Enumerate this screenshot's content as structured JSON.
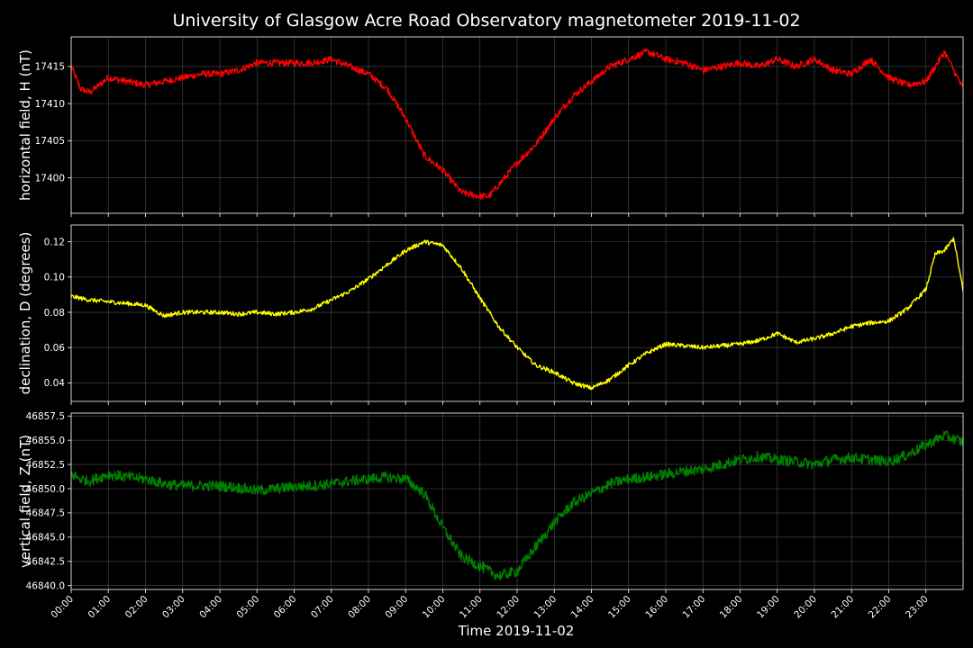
{
  "chart_data": {
    "type": "line",
    "title": "University of Glasgow Acre Road Observatory magnetometer 2019-11-02",
    "xlabel": "Time 2019-11-02",
    "x_ticks": [
      "00:00",
      "01:00",
      "02:00",
      "03:00",
      "04:00",
      "05:00",
      "06:00",
      "07:00",
      "08:00",
      "09:00",
      "10:00",
      "11:00",
      "12:00",
      "13:00",
      "14:00",
      "15:00",
      "16:00",
      "17:00",
      "18:00",
      "19:00",
      "20:00",
      "21:00",
      "22:00",
      "23:00"
    ],
    "x_range_hours": [
      0,
      24
    ],
    "grid": true,
    "panels": [
      {
        "ylabel": "horizontal field, H (nT)",
        "color": "#ff0000",
        "ylim": [
          17395.2,
          17419.0
        ],
        "y_ticks": [
          17400,
          17405,
          17410,
          17415
        ],
        "tick_labels": [
          "17400",
          "17405",
          "17410",
          "17415"
        ],
        "noise": 0.45,
        "x": [
          0,
          0.25,
          0.5,
          1,
          1.5,
          2,
          2.5,
          3,
          3.5,
          4,
          4.5,
          5,
          5.5,
          6,
          6.5,
          7,
          7.5,
          8,
          8.5,
          9,
          9.5,
          10,
          10.5,
          11,
          11.25,
          11.5,
          12,
          12.5,
          13,
          13.5,
          14,
          14.5,
          15,
          15.5,
          16,
          16.5,
          17,
          17.5,
          18,
          18.5,
          19,
          19.5,
          20,
          20.5,
          21,
          21.5,
          22,
          22.5,
          23,
          23.5,
          24
        ],
        "y": [
          17415,
          17412,
          17411.5,
          17413.5,
          17413,
          17412.5,
          17413,
          17413.5,
          17414,
          17414,
          17414.5,
          17415.5,
          17415.5,
          17415.5,
          17415.5,
          17416,
          17415,
          17414,
          17412,
          17408,
          17403,
          17401,
          17398,
          17397.5,
          17397.5,
          17399,
          17402,
          17404.5,
          17408,
          17411,
          17413,
          17415,
          17416,
          17417,
          17416,
          17415.5,
          17414.5,
          17415,
          17415.5,
          17415,
          17416,
          17415,
          17416,
          17414.5,
          17414,
          17416,
          17413.5,
          17412.5,
          17413,
          17417,
          17412
        ]
      },
      {
        "ylabel": "declination, D (degrees)",
        "color": "#ffff00",
        "ylim": [
          0.0295,
          0.1295
        ],
        "y_ticks": [
          0.04,
          0.06,
          0.08,
          0.1,
          0.12
        ],
        "tick_labels": [
          "0.04",
          "0.06",
          "0.08",
          "0.10",
          "0.12"
        ],
        "noise": 0.0012,
        "x": [
          0,
          0.5,
          1,
          1.5,
          2,
          2.5,
          3,
          3.5,
          4,
          4.5,
          5,
          5.5,
          6,
          6.5,
          7,
          7.5,
          8,
          8.5,
          9,
          9.5,
          10,
          10.5,
          11,
          11.5,
          12,
          12.5,
          13,
          13.5,
          14,
          14.5,
          15,
          15.5,
          16,
          16.5,
          17,
          17.5,
          18,
          18.5,
          19,
          19.5,
          20,
          20.5,
          21,
          21.5,
          22,
          22.5,
          23,
          23.25,
          23.5,
          23.75,
          24
        ],
        "y": [
          0.089,
          0.087,
          0.086,
          0.085,
          0.084,
          0.078,
          0.08,
          0.08,
          0.08,
          0.079,
          0.08,
          0.079,
          0.08,
          0.082,
          0.087,
          0.092,
          0.099,
          0.107,
          0.115,
          0.12,
          0.118,
          0.105,
          0.088,
          0.072,
          0.06,
          0.05,
          0.046,
          0.04,
          0.037,
          0.042,
          0.05,
          0.057,
          0.062,
          0.061,
          0.06,
          0.061,
          0.062,
          0.064,
          0.068,
          0.063,
          0.065,
          0.068,
          0.072,
          0.074,
          0.075,
          0.082,
          0.093,
          0.113,
          0.115,
          0.122,
          0.092
        ]
      },
      {
        "ylabel": "vertical field, Z (nT)",
        "color": "#008000",
        "ylim": [
          46839.6,
          46857.8
        ],
        "y_ticks": [
          46840.0,
          46842.5,
          46845.0,
          46847.5,
          46850.0,
          46852.5,
          46855.0,
          46857.5
        ],
        "tick_labels": [
          "46840.0",
          "46842.5",
          "46845.0",
          "46847.5",
          "46850.0",
          "46852.5",
          "46855.0",
          "46857.5"
        ],
        "noise": 0.55,
        "x": [
          0,
          0.25,
          0.5,
          1,
          1.5,
          2,
          2.5,
          3,
          3.5,
          4,
          4.5,
          5,
          5.5,
          6,
          6.5,
          7,
          7.5,
          8,
          8.5,
          9,
          9.5,
          10,
          10.5,
          11,
          11.5,
          12,
          12.5,
          13,
          13.5,
          14,
          14.5,
          15,
          15.5,
          16,
          16.5,
          17,
          17.5,
          18,
          18.5,
          19,
          19.5,
          20,
          20.5,
          21,
          21.5,
          22,
          22.5,
          23,
          23.5,
          24
        ],
        "y": [
          46851.5,
          46851,
          46850.8,
          46851.5,
          46851.2,
          46851,
          46850.5,
          46850.3,
          46850.3,
          46850.3,
          46850.1,
          46849.8,
          46850,
          46850.2,
          46850.3,
          46850.5,
          46850.8,
          46851,
          46851.2,
          46851,
          46849.5,
          46846,
          46843,
          46842,
          46841,
          46841.5,
          46844,
          46846.5,
          46848.5,
          46849.5,
          46850.5,
          46851,
          46851.2,
          46851.5,
          46851.8,
          46852,
          46852.5,
          46853,
          46853.3,
          46853,
          46852.8,
          46852.5,
          46853,
          46853.2,
          46853,
          46852.8,
          46853.5,
          46854.5,
          46855.5,
          46854.8
        ]
      }
    ]
  }
}
